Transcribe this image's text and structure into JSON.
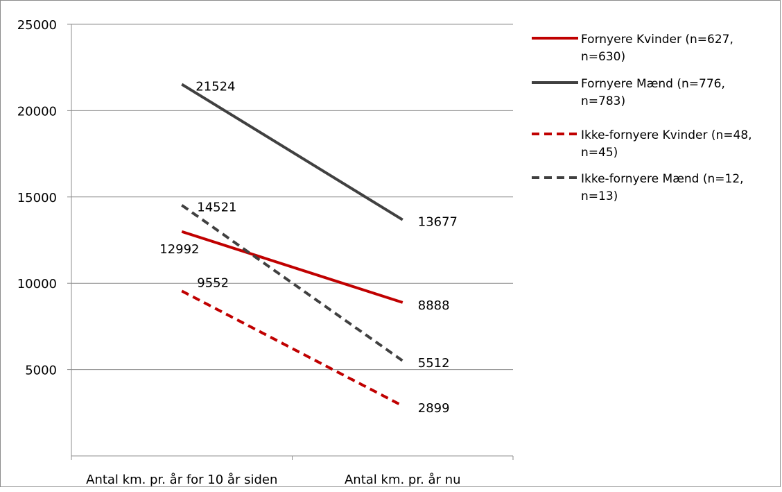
{
  "chart_data": {
    "type": "line",
    "title": "",
    "xlabel": "",
    "ylabel": "",
    "categories": [
      "Antal km. pr. år for 10 år siden",
      "Antal km. pr. år nu"
    ],
    "ylim": [
      0,
      25000
    ],
    "yticks": [
      5000,
      10000,
      15000,
      20000,
      25000
    ],
    "ytick_labels": [
      "5000",
      "10000",
      "15000",
      "20000",
      "25000"
    ],
    "grid": true,
    "legend_position": "right",
    "series": [
      {
        "name": "Fornyere Kvinder (n=627, n=630)",
        "legend_lines": [
          "Fornyere Kvinder (n=627,",
          "n=630)"
        ],
        "values": [
          12992,
          8888
        ],
        "labels": [
          "12992",
          "8888"
        ],
        "color": "#c00000",
        "dash": "solid"
      },
      {
        "name": "Fornyere Mænd (n=776, n=783)",
        "legend_lines": [
          "Fornyere Mænd (n=776,",
          "n=783)"
        ],
        "values": [
          21524,
          13677
        ],
        "labels": [
          "21524",
          "13677"
        ],
        "color": "#404040",
        "dash": "solid"
      },
      {
        "name": "Ikke-fornyere Kvinder (n=48, n=45)",
        "legend_lines": [
          "Ikke-fornyere Kvinder (n=48,",
          "n=45)"
        ],
        "values": [
          9552,
          2899
        ],
        "labels": [
          "9552",
          "2899"
        ],
        "color": "#c00000",
        "dash": "dashed"
      },
      {
        "name": "Ikke-fornyere Mænd (n=12, n=13)",
        "legend_lines": [
          "Ikke-fornyere Mænd (n=12,",
          "n=13)"
        ],
        "values": [
          14521,
          5512
        ],
        "labels": [
          "14521",
          "5512"
        ],
        "color": "#404040",
        "dash": "dashed"
      }
    ]
  }
}
